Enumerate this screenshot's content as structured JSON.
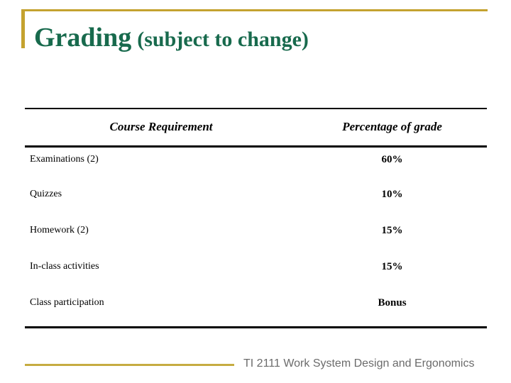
{
  "slide": {
    "title": {
      "main": "Grading",
      "suffix": "(subject to change)"
    },
    "table": {
      "headers": [
        "Course Requirement",
        "Percentage of grade"
      ],
      "rows": [
        {
          "requirement": "Examinations (2)",
          "percentage": "60%"
        },
        {
          "requirement": "Quizzes",
          "percentage": "10%"
        },
        {
          "requirement": "Homework (2)",
          "percentage": "15%"
        },
        {
          "requirement": "In-class activities",
          "percentage": "15%"
        },
        {
          "requirement": "Class participation",
          "percentage": "Bonus"
        }
      ]
    },
    "footer": {
      "text": "TI 2111 Work System Design and Ergonomics"
    },
    "colors": {
      "title_green": "#186A4D",
      "accent_gold": "#C4A22F",
      "footer_gold": "#C6AC41",
      "footer_text_gray": "#6B6B6B",
      "table_rule_black": "#000000"
    }
  }
}
